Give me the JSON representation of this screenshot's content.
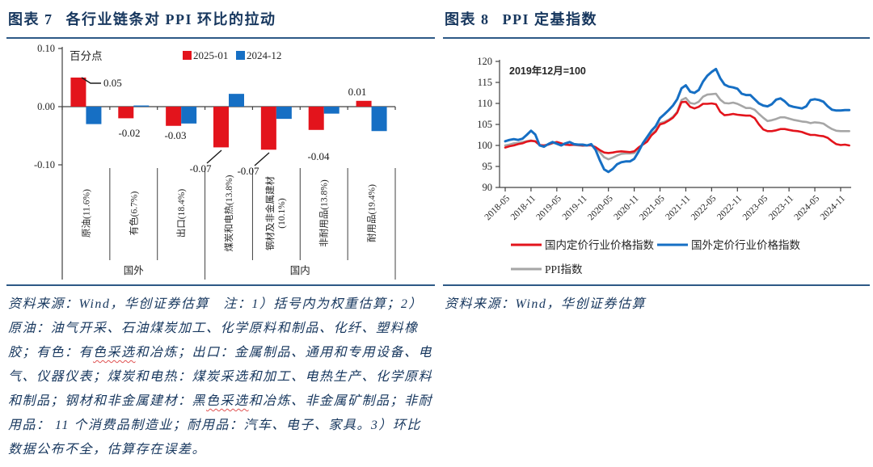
{
  "figures": [
    {
      "label": "图表 7",
      "title": "各行业链条对 PPI 环比的拉动",
      "source_note_segments": [
        {
          "text": "资料来源：Wind，华创证券估算　注：1）括号内为权重估算；2）原油：油气开采、石油煤炭加工、化学原料和制品、化纤、塑料橡胶；有色：有",
          "wavy": false
        },
        {
          "text": "色采选",
          "wavy": true
        },
        {
          "text": "和冶炼；出口：金属制品、通用和专用设备、电气、仪器仪表；煤炭和电热：煤炭采选和加工、电热生产、化学原料和制品；钢材和非金属建材：黑",
          "wavy": false
        },
        {
          "text": "色采选",
          "wavy": true
        },
        {
          "text": "和冶炼、非金属矿制品；非耐用品： 11 个消费品制造业；耐用品：汽车、电子、家具。3）环比数据公布不全，估算存在误差。",
          "wavy": false
        }
      ]
    },
    {
      "label": "图表 8",
      "title": "PPI 定基指数",
      "source_note": "资料来源：Wind，华创证券估算"
    }
  ],
  "colors": {
    "red": "#e3141c",
    "blue": "#166fc4",
    "gray": "#a6a6a6",
    "navy": "#17375e",
    "rule": "#2d5986",
    "axis": "#404040",
    "text": "#262626"
  },
  "chart_data": [
    {
      "type": "bar",
      "title": "各行业链条对 PPI 环比的拉动",
      "unit_label": "百分点",
      "ylabel": "百分点",
      "ylim": [
        -0.1,
        0.1
      ],
      "ytick_labels": [
        "0.10",
        "0.00",
        "-0.10"
      ],
      "ytick_values": [
        0.1,
        0.0,
        -0.1
      ],
      "legend_position": "top",
      "grid": false,
      "categories": [
        "原油(11.6%)",
        "有色(6.7%)",
        "出口(18.4%)",
        "煤炭和电热(13.8%)",
        "钢材及非金属建材\n(10.1%)",
        "非耐用品(13.8%)",
        "耐用品(19.4%)"
      ],
      "groups": [
        {
          "label": "国外",
          "span": [
            0,
            2
          ]
        },
        {
          "label": "国内",
          "span": [
            3,
            6
          ]
        }
      ],
      "series": [
        {
          "name": "2025-01",
          "color_key": "red",
          "values": [
            0.05,
            -0.02,
            -0.033,
            -0.07,
            -0.074,
            -0.04,
            0.01
          ]
        },
        {
          "name": "2024-12",
          "color_key": "blue",
          "values": [
            -0.03,
            0.002,
            -0.029,
            0.022,
            -0.021,
            -0.012,
            -0.042
          ]
        }
      ],
      "data_labels": [
        "0.05",
        "-0.02",
        "-0.03",
        "-0.07",
        "-0.07",
        "-0.04",
        "0.01"
      ]
    },
    {
      "type": "line",
      "title": "PPI 定基指数",
      "annotation": "2019年12月=100",
      "ylim": [
        90,
        120
      ],
      "ytick_values": [
        90,
        95,
        100,
        105,
        110,
        115,
        120
      ],
      "grid": false,
      "legend_position": "bottom",
      "x_monthly_start": "2018-05",
      "x_monthly_end": "2025-01",
      "xtick_labels": [
        "2018-05",
        "2018-11",
        "2019-05",
        "2019-11",
        "2020-05",
        "2020-11",
        "2021-05",
        "2021-11",
        "2022-05",
        "2022-11",
        "2023-05",
        "2023-11",
        "2024-05",
        "2024-11"
      ],
      "series": [
        {
          "name": "国内定价行业价格指数",
          "color_key": "red",
          "values": [
            99.5,
            99.8,
            100.0,
            100.3,
            100.5,
            100.9,
            101.1,
            101.0,
            100.1,
            100.0,
            100.2,
            100.6,
            100.8,
            100.5,
            100.2,
            100.1,
            100.2,
            100.1,
            100.0,
            100.0,
            100.0,
            99.6,
            98.9,
            98.3,
            98.2,
            98.3,
            98.5,
            98.6,
            98.5,
            98.4,
            98.6,
            99.5,
            100.2,
            100.9,
            102.4,
            103.3,
            105.0,
            105.3,
            105.9,
            106.6,
            107.8,
            110.3,
            110.4,
            109.2,
            108.8,
            109.2,
            109.9,
            109.9,
            110.0,
            109.8,
            108.0,
            107.2,
            107.3,
            107.5,
            107.3,
            107.2,
            107.1,
            107.1,
            106.5,
            105.0,
            103.8,
            103.4,
            103.4,
            103.6,
            103.9,
            103.9,
            103.7,
            103.5,
            103.4,
            103.2,
            102.8,
            102.5,
            102.5,
            102.3,
            102.2,
            101.8,
            101.0,
            100.3,
            100.1,
            100.2,
            100.0
          ]
        },
        {
          "name": "国外定价行业价格指数",
          "color_key": "blue",
          "values": [
            101.0,
            101.3,
            101.5,
            101.3,
            101.6,
            102.5,
            103.5,
            102.6,
            100.0,
            99.7,
            100.3,
            100.8,
            100.4,
            100.0,
            100.5,
            100.8,
            100.3,
            100.2,
            100.2,
            100.0,
            100.3,
            99.0,
            96.5,
            94.3,
            93.7,
            94.4,
            95.5,
            96.0,
            96.2,
            96.2,
            96.8,
            98.5,
            100.5,
            102.0,
            103.5,
            104.6,
            106.5,
            107.4,
            108.4,
            109.5,
            111.0,
            113.6,
            114.3,
            112.8,
            112.5,
            113.2,
            115.2,
            116.6,
            117.5,
            118.2,
            116.0,
            114.5,
            114.0,
            113.8,
            113.5,
            112.3,
            112.0,
            112.0,
            111.0,
            110.0,
            109.5,
            109.3,
            109.8,
            110.9,
            111.2,
            110.5,
            109.5,
            109.2,
            109.0,
            108.8,
            109.3,
            110.8,
            111.0,
            110.8,
            110.4,
            109.3,
            108.5,
            108.3,
            108.3,
            108.4,
            108.4
          ]
        },
        {
          "name": "PPI指数",
          "color_key": "gray",
          "values": [
            100.0,
            100.2,
            100.5,
            100.6,
            100.8,
            101.0,
            101.2,
            100.9,
            100.1,
            100.0,
            100.2,
            100.5,
            100.7,
            100.4,
            100.2,
            100.1,
            100.1,
            100.0,
            99.9,
            100.0,
            100.1,
            99.5,
            98.4,
            97.2,
            96.7,
            97.1,
            97.6,
            98.0,
            98.1,
            98.1,
            98.2,
            99.3,
            100.3,
            101.1,
            102.7,
            103.6,
            105.3,
            105.6,
            106.1,
            106.8,
            108.0,
            110.8,
            111.3,
            110.1,
            109.9,
            110.4,
            111.6,
            112.1,
            112.2,
            112.3,
            110.9,
            110.1,
            110.0,
            110.2,
            109.9,
            109.4,
            108.9,
            108.9,
            108.5,
            107.5,
            106.6,
            105.8,
            106.0,
            106.3,
            106.7,
            106.7,
            106.4,
            106.1,
            105.9,
            105.7,
            105.6,
            105.3,
            105.5,
            105.4,
            105.2,
            104.5,
            103.9,
            103.5,
            103.4,
            103.4,
            103.4
          ]
        }
      ],
      "legend": [
        "国内定价行业价格指数",
        "国外定价行业价格指数",
        "PPI指数"
      ]
    }
  ]
}
